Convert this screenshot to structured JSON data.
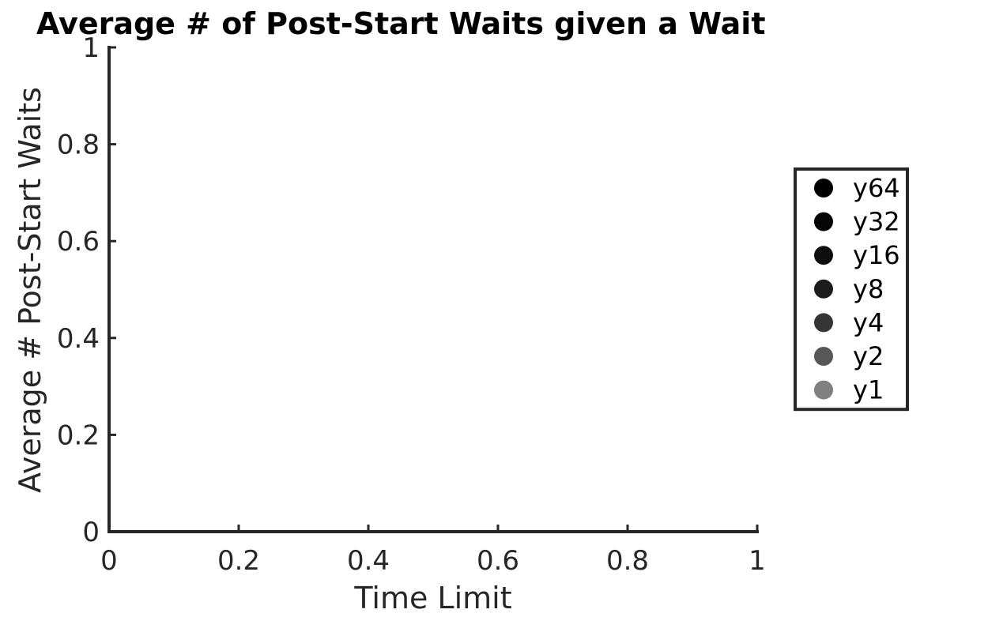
{
  "chart_data": {
    "type": "scatter",
    "title": "Average # of Post-Start Waits given a Wait",
    "xlabel": "Time Limit",
    "ylabel": "Average # Post-Start Waits",
    "xlim": [
      0,
      1
    ],
    "ylim": [
      0,
      1
    ],
    "x_ticks": [
      0,
      0.2,
      0.4,
      0.6,
      0.8,
      1
    ],
    "x_tick_labels": [
      "0",
      "0.2",
      "0.4",
      "0.6",
      "0.8",
      "1"
    ],
    "y_ticks": [
      0,
      0.2,
      0.4,
      0.6,
      0.8,
      1
    ],
    "y_tick_labels": [
      "0",
      "0.2",
      "0.4",
      "0.6",
      "0.8",
      "1"
    ],
    "grid": false,
    "legend_position": "right",
    "series": [
      {
        "name": "y64",
        "color": "#000000",
        "x": [],
        "y": []
      },
      {
        "name": "y32",
        "color": "#050505",
        "x": [],
        "y": []
      },
      {
        "name": "y16",
        "color": "#0e0e0e",
        "x": [],
        "y": []
      },
      {
        "name": "y8",
        "color": "#1c1c1c",
        "x": [],
        "y": []
      },
      {
        "name": "y4",
        "color": "#353535",
        "x": [],
        "y": []
      },
      {
        "name": "y2",
        "color": "#575757",
        "x": [],
        "y": []
      },
      {
        "name": "y1",
        "color": "#808080",
        "x": [],
        "y": []
      }
    ]
  }
}
